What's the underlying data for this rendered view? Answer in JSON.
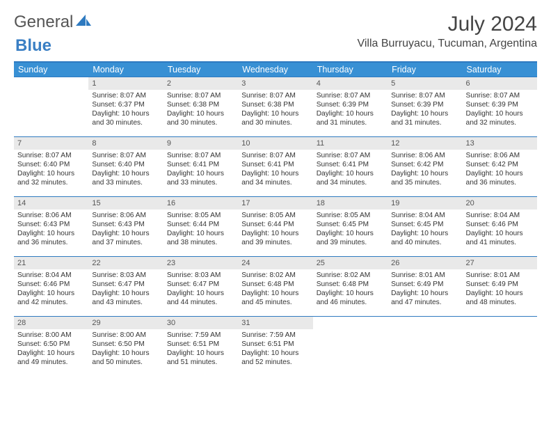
{
  "brand": {
    "part1": "General",
    "part2": "Blue"
  },
  "title": "July 2024",
  "location": "Villa Burruyacu, Tucuman, Argentina",
  "colors": {
    "header_bg": "#3890d4",
    "header_text": "#ffffff",
    "rule": "#2e7ac0",
    "daynum_bg": "#e9e9e9",
    "text": "#333333",
    "brand_gray": "#555555",
    "brand_blue": "#3a7fc4",
    "background": "#ffffff"
  },
  "weekdays": [
    "Sunday",
    "Monday",
    "Tuesday",
    "Wednesday",
    "Thursday",
    "Friday",
    "Saturday"
  ],
  "weeks": [
    [
      null,
      {
        "d": "1",
        "sr": "Sunrise: 8:07 AM",
        "ss": "Sunset: 6:37 PM",
        "dl1": "Daylight: 10 hours",
        "dl2": "and 30 minutes."
      },
      {
        "d": "2",
        "sr": "Sunrise: 8:07 AM",
        "ss": "Sunset: 6:38 PM",
        "dl1": "Daylight: 10 hours",
        "dl2": "and 30 minutes."
      },
      {
        "d": "3",
        "sr": "Sunrise: 8:07 AM",
        "ss": "Sunset: 6:38 PM",
        "dl1": "Daylight: 10 hours",
        "dl2": "and 30 minutes."
      },
      {
        "d": "4",
        "sr": "Sunrise: 8:07 AM",
        "ss": "Sunset: 6:39 PM",
        "dl1": "Daylight: 10 hours",
        "dl2": "and 31 minutes."
      },
      {
        "d": "5",
        "sr": "Sunrise: 8:07 AM",
        "ss": "Sunset: 6:39 PM",
        "dl1": "Daylight: 10 hours",
        "dl2": "and 31 minutes."
      },
      {
        "d": "6",
        "sr": "Sunrise: 8:07 AM",
        "ss": "Sunset: 6:39 PM",
        "dl1": "Daylight: 10 hours",
        "dl2": "and 32 minutes."
      }
    ],
    [
      {
        "d": "7",
        "sr": "Sunrise: 8:07 AM",
        "ss": "Sunset: 6:40 PM",
        "dl1": "Daylight: 10 hours",
        "dl2": "and 32 minutes."
      },
      {
        "d": "8",
        "sr": "Sunrise: 8:07 AM",
        "ss": "Sunset: 6:40 PM",
        "dl1": "Daylight: 10 hours",
        "dl2": "and 33 minutes."
      },
      {
        "d": "9",
        "sr": "Sunrise: 8:07 AM",
        "ss": "Sunset: 6:41 PM",
        "dl1": "Daylight: 10 hours",
        "dl2": "and 33 minutes."
      },
      {
        "d": "10",
        "sr": "Sunrise: 8:07 AM",
        "ss": "Sunset: 6:41 PM",
        "dl1": "Daylight: 10 hours",
        "dl2": "and 34 minutes."
      },
      {
        "d": "11",
        "sr": "Sunrise: 8:07 AM",
        "ss": "Sunset: 6:41 PM",
        "dl1": "Daylight: 10 hours",
        "dl2": "and 34 minutes."
      },
      {
        "d": "12",
        "sr": "Sunrise: 8:06 AM",
        "ss": "Sunset: 6:42 PM",
        "dl1": "Daylight: 10 hours",
        "dl2": "and 35 minutes."
      },
      {
        "d": "13",
        "sr": "Sunrise: 8:06 AM",
        "ss": "Sunset: 6:42 PM",
        "dl1": "Daylight: 10 hours",
        "dl2": "and 36 minutes."
      }
    ],
    [
      {
        "d": "14",
        "sr": "Sunrise: 8:06 AM",
        "ss": "Sunset: 6:43 PM",
        "dl1": "Daylight: 10 hours",
        "dl2": "and 36 minutes."
      },
      {
        "d": "15",
        "sr": "Sunrise: 8:06 AM",
        "ss": "Sunset: 6:43 PM",
        "dl1": "Daylight: 10 hours",
        "dl2": "and 37 minutes."
      },
      {
        "d": "16",
        "sr": "Sunrise: 8:05 AM",
        "ss": "Sunset: 6:44 PM",
        "dl1": "Daylight: 10 hours",
        "dl2": "and 38 minutes."
      },
      {
        "d": "17",
        "sr": "Sunrise: 8:05 AM",
        "ss": "Sunset: 6:44 PM",
        "dl1": "Daylight: 10 hours",
        "dl2": "and 39 minutes."
      },
      {
        "d": "18",
        "sr": "Sunrise: 8:05 AM",
        "ss": "Sunset: 6:45 PM",
        "dl1": "Daylight: 10 hours",
        "dl2": "and 39 minutes."
      },
      {
        "d": "19",
        "sr": "Sunrise: 8:04 AM",
        "ss": "Sunset: 6:45 PM",
        "dl1": "Daylight: 10 hours",
        "dl2": "and 40 minutes."
      },
      {
        "d": "20",
        "sr": "Sunrise: 8:04 AM",
        "ss": "Sunset: 6:46 PM",
        "dl1": "Daylight: 10 hours",
        "dl2": "and 41 minutes."
      }
    ],
    [
      {
        "d": "21",
        "sr": "Sunrise: 8:04 AM",
        "ss": "Sunset: 6:46 PM",
        "dl1": "Daylight: 10 hours",
        "dl2": "and 42 minutes."
      },
      {
        "d": "22",
        "sr": "Sunrise: 8:03 AM",
        "ss": "Sunset: 6:47 PM",
        "dl1": "Daylight: 10 hours",
        "dl2": "and 43 minutes."
      },
      {
        "d": "23",
        "sr": "Sunrise: 8:03 AM",
        "ss": "Sunset: 6:47 PM",
        "dl1": "Daylight: 10 hours",
        "dl2": "and 44 minutes."
      },
      {
        "d": "24",
        "sr": "Sunrise: 8:02 AM",
        "ss": "Sunset: 6:48 PM",
        "dl1": "Daylight: 10 hours",
        "dl2": "and 45 minutes."
      },
      {
        "d": "25",
        "sr": "Sunrise: 8:02 AM",
        "ss": "Sunset: 6:48 PM",
        "dl1": "Daylight: 10 hours",
        "dl2": "and 46 minutes."
      },
      {
        "d": "26",
        "sr": "Sunrise: 8:01 AM",
        "ss": "Sunset: 6:49 PM",
        "dl1": "Daylight: 10 hours",
        "dl2": "and 47 minutes."
      },
      {
        "d": "27",
        "sr": "Sunrise: 8:01 AM",
        "ss": "Sunset: 6:49 PM",
        "dl1": "Daylight: 10 hours",
        "dl2": "and 48 minutes."
      }
    ],
    [
      {
        "d": "28",
        "sr": "Sunrise: 8:00 AM",
        "ss": "Sunset: 6:50 PM",
        "dl1": "Daylight: 10 hours",
        "dl2": "and 49 minutes."
      },
      {
        "d": "29",
        "sr": "Sunrise: 8:00 AM",
        "ss": "Sunset: 6:50 PM",
        "dl1": "Daylight: 10 hours",
        "dl2": "and 50 minutes."
      },
      {
        "d": "30",
        "sr": "Sunrise: 7:59 AM",
        "ss": "Sunset: 6:51 PM",
        "dl1": "Daylight: 10 hours",
        "dl2": "and 51 minutes."
      },
      {
        "d": "31",
        "sr": "Sunrise: 7:59 AM",
        "ss": "Sunset: 6:51 PM",
        "dl1": "Daylight: 10 hours",
        "dl2": "and 52 minutes."
      },
      null,
      null,
      null
    ]
  ]
}
